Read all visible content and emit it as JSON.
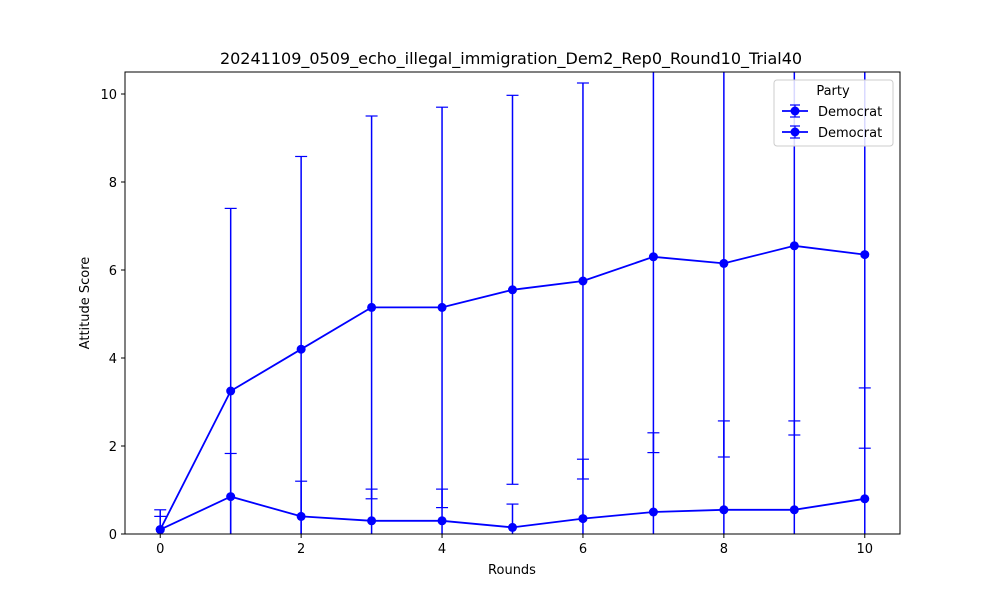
{
  "chart_data": {
    "type": "line",
    "title": "20241109_0509_echo_illegal_immigration_Dem2_Rep0_Round10_Trial40",
    "xlabel": "Rounds",
    "ylabel": "Attitude Score",
    "xlim": [
      -0.5,
      10.5
    ],
    "ylim": [
      0,
      10.5
    ],
    "xticks": [
      "0",
      "2",
      "4",
      "6",
      "8",
      "10"
    ],
    "yticks": [
      "0",
      "2",
      "4",
      "6",
      "8",
      "10"
    ],
    "grid": false,
    "legend": {
      "title": "Party",
      "placement": "top-right"
    },
    "x": [
      0,
      1,
      2,
      3,
      4,
      5,
      6,
      7,
      8,
      9,
      10
    ],
    "series": [
      {
        "name": "Democrat",
        "color": "#0000ff",
        "values": [
          0.1,
          3.25,
          4.2,
          5.15,
          5.15,
          5.55,
          5.75,
          6.3,
          6.15,
          6.55,
          6.35
        ],
        "error": [
          0.3,
          4.15,
          4.38,
          4.35,
          4.55,
          4.42,
          4.5,
          4.45,
          4.4,
          4.3,
          4.4
        ]
      },
      {
        "name": "Democrat",
        "color": "#0000ff",
        "values": [
          0.1,
          0.85,
          0.4,
          0.3,
          0.3,
          0.15,
          0.35,
          0.5,
          0.55,
          0.55,
          0.8
        ],
        "error": [
          0.45,
          0.98,
          0.8,
          0.72,
          0.72,
          0.53,
          1.35,
          1.8,
          2.02,
          2.02,
          2.52
        ]
      }
    ]
  }
}
